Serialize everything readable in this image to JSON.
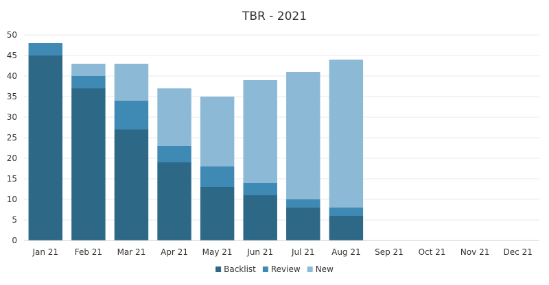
{
  "chart_data": {
    "type": "bar",
    "stacked": true,
    "title": "TBR - 2021",
    "categories": [
      "Jan 21",
      "Feb 21",
      "Mar 21",
      "Apr 21",
      "May 21",
      "Jun 21",
      "Jul 21",
      "Aug 21",
      "Sep 21",
      "Oct 21",
      "Nov 21",
      "Dec 21"
    ],
    "series": [
      {
        "name": "Backlist",
        "color": "#2e6887",
        "values": [
          45,
          37,
          27,
          19,
          13,
          11,
          8,
          6,
          0,
          0,
          0,
          0
        ]
      },
      {
        "name": "Review",
        "color": "#3f89b5",
        "values": [
          3,
          3,
          7,
          4,
          5,
          3,
          2,
          2,
          0,
          0,
          0,
          0
        ]
      },
      {
        "name": "New",
        "color": "#8bb9d6",
        "values": [
          0,
          3,
          9,
          14,
          17,
          25,
          31,
          36,
          0,
          0,
          0,
          0
        ]
      }
    ],
    "ylim": [
      0,
      50
    ],
    "yticks": [
      0,
      5,
      10,
      15,
      20,
      25,
      30,
      35,
      40,
      45,
      50
    ],
    "grid": true,
    "legend_position": "bottom-center"
  }
}
